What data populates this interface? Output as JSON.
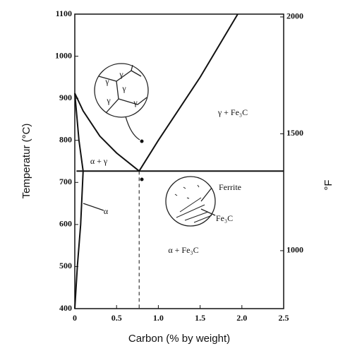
{
  "chart_data": {
    "type": "line",
    "xlabel": "Carbon (% by weight)",
    "ylabel": "Temperatur (°C)",
    "y2label": "°F",
    "xlim": [
      0,
      2.5
    ],
    "xticks": [
      0,
      0.5,
      {
        "value": 1,
        "label": "1.0"
      },
      1.5,
      {
        "value": 2,
        "label": "2.0"
      },
      2.5
    ],
    "ylim": [
      400,
      1100
    ],
    "yticks": [
      400,
      500,
      600,
      700,
      800,
      900,
      1000,
      1100
    ],
    "y2lim": [
      752,
      2012
    ],
    "y2ticks": [
      1000,
      1500,
      2000
    ],
    "series": [
      {
        "color": "#111",
        "x": [
          0,
          0.1,
          0.3,
          0.5,
          0.77
        ],
        "values": [
          912,
          870,
          810,
          770,
          727
        ]
      },
      {
        "color": "#111",
        "x": [
          0.77,
          1.0,
          1.5,
          1.95
        ],
        "values": [
          727,
          800,
          950,
          1100
        ]
      },
      {
        "color": "#111",
        "x": [
          0.02,
          2.5
        ],
        "values": [
          727,
          727
        ]
      },
      {
        "color": "#111",
        "x": [
          0,
          0.05,
          0.1,
          0.07,
          0.03,
          0
        ],
        "values": [
          912,
          800,
          727,
          600,
          500,
          400
        ]
      },
      {
        "color": "#111",
        "dashed": true,
        "x": [
          0.77,
          0.77
        ],
        "values": [
          727,
          400
        ]
      }
    ],
    "annotations": [
      "α + γ",
      "γ + Fe₃C",
      "α",
      "α + Fe₃C",
      "Ferrite",
      "Fe₃C",
      "γ",
      "γ",
      "γ",
      "γ",
      "γ"
    ]
  }
}
